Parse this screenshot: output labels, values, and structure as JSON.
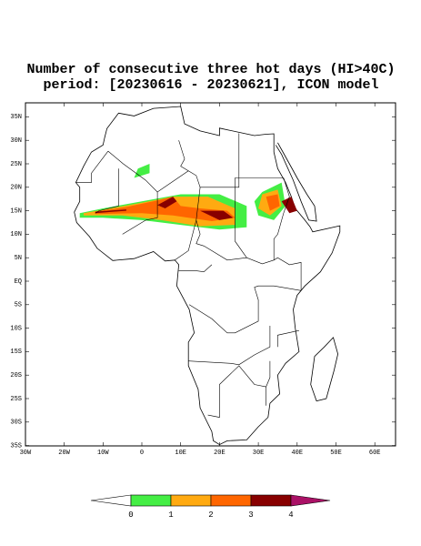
{
  "title": [
    "Number of consecutive three hot days (HI>40C)",
    "period: [20230616 - 20230621], ICON model"
  ],
  "lat_labels": [
    "35N",
    "30N",
    "25N",
    "20N",
    "15N",
    "10N",
    "5N",
    "EQ",
    "5S",
    "10S",
    "15S",
    "20S",
    "25S",
    "30S",
    "35S"
  ],
  "lon_labels": [
    "30W",
    "20W",
    "10W",
    "0",
    "10E",
    "20E",
    "30E",
    "40E",
    "50E",
    "60E"
  ],
  "legend": {
    "labels": [
      0,
      1,
      2,
      3,
      4
    ],
    "colors": [
      "#ffffff",
      "#44ee44",
      "#ffaa11",
      "#ff6600",
      "#880000",
      "#aa1166"
    ]
  }
}
